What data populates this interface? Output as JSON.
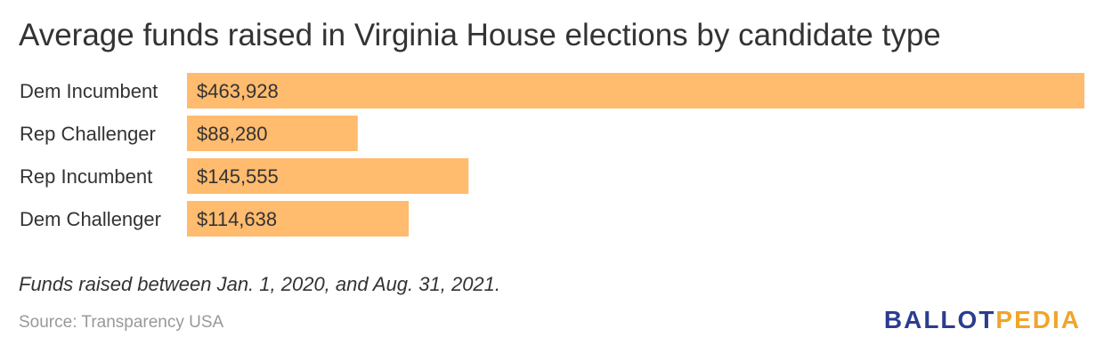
{
  "title": "Average funds raised in Virginia House elections by candidate type",
  "note": "Funds raised between Jan. 1, 2020, and Aug. 31, 2021.",
  "source": "Source: Transparency USA",
  "logo": {
    "part_a": "BALLOT",
    "part_b": "PEDIA",
    "color_a": "#2b3d8f",
    "color_b": "#f0a52a"
  },
  "chart_data": {
    "type": "bar",
    "orientation": "horizontal",
    "categories": [
      "Dem Incumbent",
      "Rep Challenger",
      "Rep Incumbent",
      "Dem Challenger"
    ],
    "values": [
      463928,
      88280,
      145555,
      114638
    ],
    "value_labels": [
      "$463,928",
      "$88,280",
      "$145,555",
      "$114,638"
    ],
    "xlim": [
      0,
      463928
    ],
    "bar_color": "#ffbb6e",
    "grid": false,
    "legend": "none"
  }
}
